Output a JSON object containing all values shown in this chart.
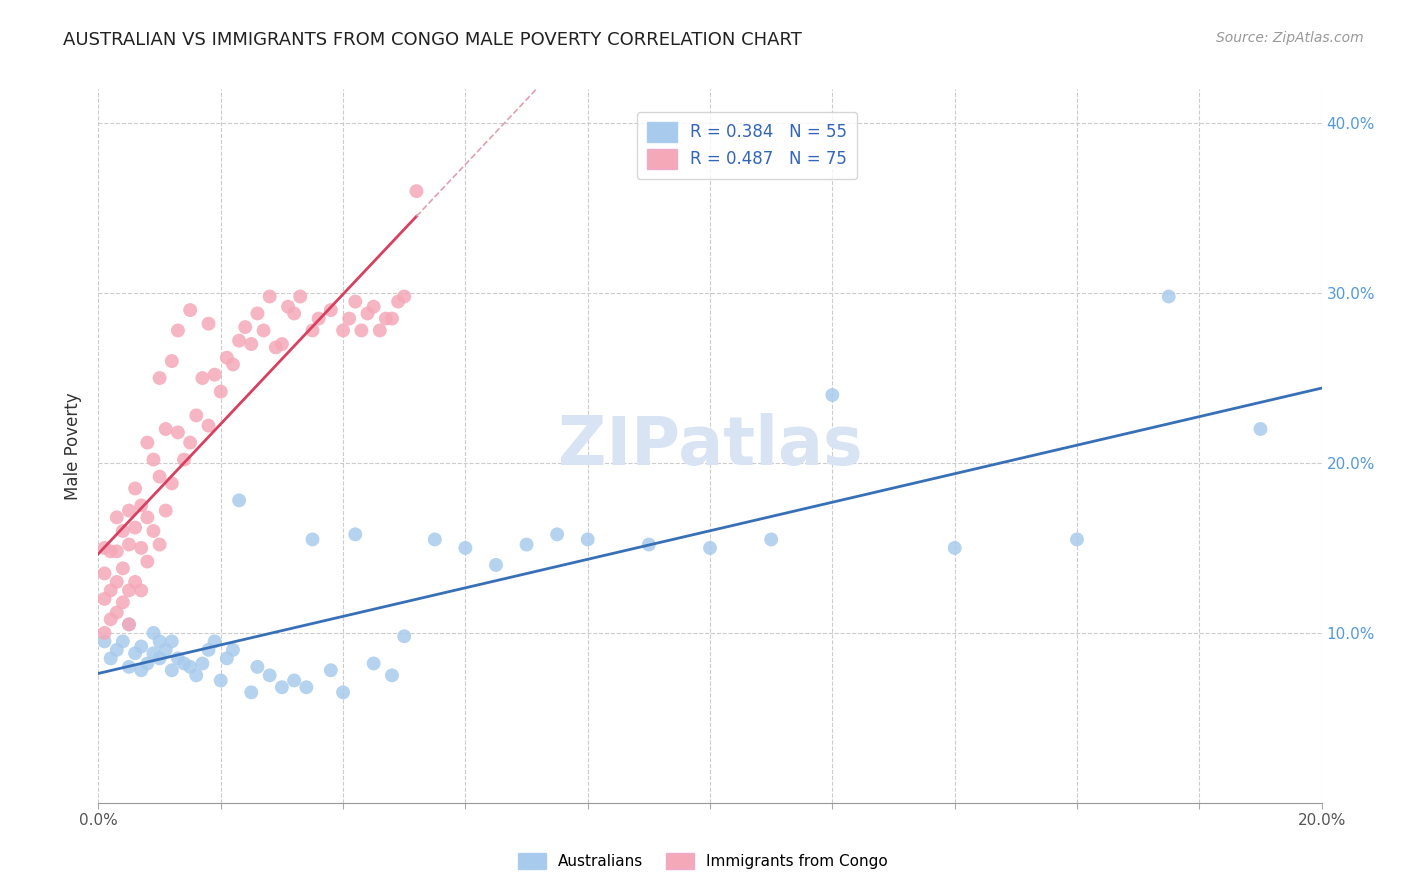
{
  "title": "AUSTRALIAN VS IMMIGRANTS FROM CONGO MALE POVERTY CORRELATION CHART",
  "source": "Source: ZipAtlas.com",
  "ylabel": "Male Poverty",
  "xlim": [
    0.0,
    0.2
  ],
  "ylim": [
    0.0,
    0.42
  ],
  "y_ticks": [
    0.0,
    0.1,
    0.2,
    0.3,
    0.4
  ],
  "legend_r1": "R = 0.384",
  "legend_n1": "N = 55",
  "legend_r2": "R = 0.487",
  "legend_n2": "N = 75",
  "color_blue": "#A8CAEC",
  "color_pink": "#F5A8B8",
  "color_blue_line": "#3870B8",
  "color_pink_line": "#D84060",
  "color_diag_line": "#E0A0B0",
  "watermark_color": "#D8E4F4",
  "aus_x": [
    0.001,
    0.002,
    0.003,
    0.004,
    0.005,
    0.005,
    0.006,
    0.007,
    0.007,
    0.008,
    0.009,
    0.009,
    0.01,
    0.01,
    0.011,
    0.012,
    0.012,
    0.013,
    0.014,
    0.015,
    0.016,
    0.017,
    0.018,
    0.019,
    0.02,
    0.021,
    0.022,
    0.023,
    0.025,
    0.026,
    0.028,
    0.03,
    0.032,
    0.034,
    0.035,
    0.038,
    0.04,
    0.042,
    0.045,
    0.048,
    0.05,
    0.055,
    0.06,
    0.065,
    0.07,
    0.075,
    0.08,
    0.09,
    0.1,
    0.11,
    0.12,
    0.14,
    0.16,
    0.175,
    0.19
  ],
  "aus_y": [
    0.095,
    0.085,
    0.09,
    0.095,
    0.08,
    0.105,
    0.088,
    0.078,
    0.092,
    0.082,
    0.088,
    0.1,
    0.085,
    0.095,
    0.09,
    0.078,
    0.095,
    0.085,
    0.082,
    0.08,
    0.075,
    0.082,
    0.09,
    0.095,
    0.072,
    0.085,
    0.09,
    0.178,
    0.065,
    0.08,
    0.075,
    0.068,
    0.072,
    0.068,
    0.155,
    0.078,
    0.065,
    0.158,
    0.082,
    0.075,
    0.098,
    0.155,
    0.15,
    0.14,
    0.152,
    0.158,
    0.155,
    0.152,
    0.15,
    0.155,
    0.24,
    0.15,
    0.155,
    0.298,
    0.22
  ],
  "congo_x": [
    0.001,
    0.001,
    0.001,
    0.001,
    0.002,
    0.002,
    0.002,
    0.003,
    0.003,
    0.003,
    0.003,
    0.004,
    0.004,
    0.004,
    0.005,
    0.005,
    0.005,
    0.005,
    0.006,
    0.006,
    0.006,
    0.007,
    0.007,
    0.007,
    0.008,
    0.008,
    0.008,
    0.009,
    0.009,
    0.01,
    0.01,
    0.01,
    0.011,
    0.011,
    0.012,
    0.012,
    0.013,
    0.013,
    0.014,
    0.015,
    0.015,
    0.016,
    0.017,
    0.018,
    0.018,
    0.019,
    0.02,
    0.021,
    0.022,
    0.023,
    0.024,
    0.025,
    0.026,
    0.027,
    0.028,
    0.029,
    0.03,
    0.031,
    0.032,
    0.033,
    0.035,
    0.036,
    0.038,
    0.04,
    0.041,
    0.042,
    0.043,
    0.044,
    0.045,
    0.046,
    0.047,
    0.048,
    0.049,
    0.05,
    0.052
  ],
  "congo_y": [
    0.1,
    0.12,
    0.135,
    0.15,
    0.108,
    0.125,
    0.148,
    0.112,
    0.13,
    0.148,
    0.168,
    0.118,
    0.138,
    0.16,
    0.105,
    0.125,
    0.152,
    0.172,
    0.13,
    0.162,
    0.185,
    0.125,
    0.15,
    0.175,
    0.142,
    0.168,
    0.212,
    0.16,
    0.202,
    0.152,
    0.192,
    0.25,
    0.172,
    0.22,
    0.188,
    0.26,
    0.218,
    0.278,
    0.202,
    0.212,
    0.29,
    0.228,
    0.25,
    0.222,
    0.282,
    0.252,
    0.242,
    0.262,
    0.258,
    0.272,
    0.28,
    0.27,
    0.288,
    0.278,
    0.298,
    0.268,
    0.27,
    0.292,
    0.288,
    0.298,
    0.278,
    0.285,
    0.29,
    0.278,
    0.285,
    0.295,
    0.278,
    0.288,
    0.292,
    0.278,
    0.285,
    0.285,
    0.295,
    0.298,
    0.36
  ]
}
